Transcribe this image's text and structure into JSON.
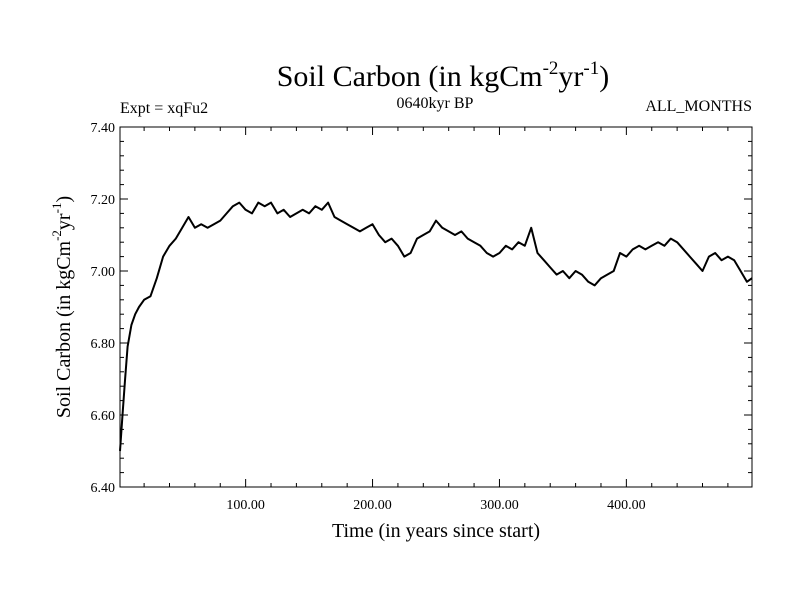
{
  "chart_data": {
    "type": "line",
    "title": {
      "main": "Soil Carbon (in kgCm",
      "sup1": "-2",
      "mid": "yr",
      "sup2": "-1",
      "end": ")"
    },
    "subtitle_left": "Expt = xqFu2",
    "subtitle_center": "0640kyr BP",
    "subtitle_right": "ALL_MONTHS",
    "xlabel": "Time (in years since start)",
    "ylabel": {
      "main": "Soil Carbon (in kgCm",
      "sup1": "-2",
      "mid": "yr",
      "sup2": "-1",
      "end": ")"
    },
    "xlim": [
      1,
      499
    ],
    "ylim": [
      6.4,
      7.4
    ],
    "xticks": [
      100,
      200,
      300,
      400
    ],
    "xtick_labels": [
      "100.00",
      "200.00",
      "300.00",
      "400.00"
    ],
    "yticks": [
      6.4,
      6.6,
      6.8,
      7.0,
      7.2,
      7.4
    ],
    "ytick_labels": [
      "6.40",
      "6.60",
      "6.80",
      "7.00",
      "7.20",
      "7.40"
    ],
    "line_color": "#000000",
    "series": [
      {
        "name": "Soil Carbon",
        "x": [
          1,
          3,
          5,
          7,
          10,
          13,
          16,
          20,
          25,
          30,
          35,
          40,
          45,
          50,
          55,
          60,
          65,
          70,
          75,
          80,
          85,
          90,
          95,
          100,
          105,
          110,
          115,
          120,
          125,
          130,
          135,
          140,
          145,
          150,
          155,
          160,
          165,
          170,
          175,
          180,
          185,
          190,
          195,
          200,
          205,
          210,
          215,
          220,
          225,
          230,
          235,
          240,
          245,
          250,
          255,
          260,
          265,
          270,
          275,
          280,
          285,
          290,
          295,
          300,
          305,
          310,
          315,
          320,
          325,
          330,
          335,
          340,
          345,
          350,
          355,
          360,
          365,
          370,
          375,
          380,
          385,
          390,
          395,
          400,
          405,
          410,
          415,
          420,
          425,
          430,
          435,
          440,
          445,
          450,
          455,
          460,
          465,
          470,
          475,
          480,
          485,
          490,
          495,
          499
        ],
        "y": [
          6.5,
          6.6,
          6.7,
          6.79,
          6.85,
          6.88,
          6.9,
          6.92,
          6.93,
          6.98,
          7.04,
          7.07,
          7.09,
          7.12,
          7.15,
          7.12,
          7.13,
          7.12,
          7.13,
          7.14,
          7.16,
          7.18,
          7.19,
          7.17,
          7.16,
          7.19,
          7.18,
          7.19,
          7.16,
          7.17,
          7.15,
          7.16,
          7.17,
          7.16,
          7.18,
          7.17,
          7.19,
          7.15,
          7.14,
          7.13,
          7.12,
          7.11,
          7.12,
          7.13,
          7.1,
          7.08,
          7.09,
          7.07,
          7.04,
          7.05,
          7.09,
          7.1,
          7.11,
          7.14,
          7.12,
          7.11,
          7.1,
          7.11,
          7.09,
          7.08,
          7.07,
          7.05,
          7.04,
          7.05,
          7.07,
          7.06,
          7.08,
          7.07,
          7.12,
          7.05,
          7.03,
          7.01,
          6.99,
          7.0,
          6.98,
          7.0,
          6.99,
          6.97,
          6.96,
          6.98,
          6.99,
          7.0,
          7.05,
          7.04,
          7.06,
          7.07,
          7.06,
          7.07,
          7.08,
          7.07,
          7.09,
          7.08,
          7.06,
          7.04,
          7.02,
          7.0,
          7.04,
          7.05,
          7.03,
          7.04,
          7.03,
          7.0,
          6.97,
          6.98
        ]
      }
    ]
  }
}
